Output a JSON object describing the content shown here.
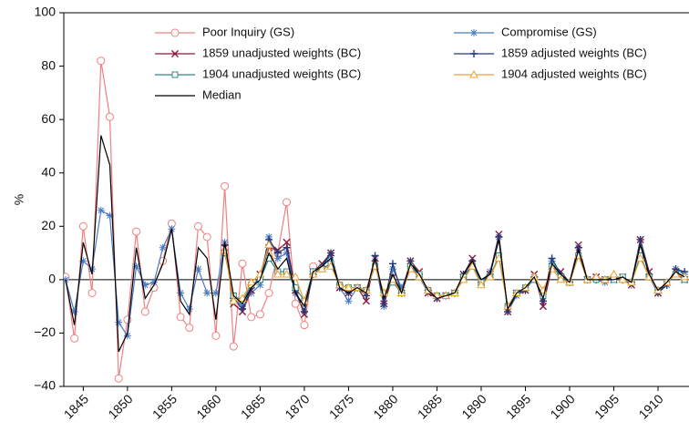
{
  "chart_data": {
    "type": "line",
    "ylabel": "%",
    "x": [
      1843,
      1844,
      1845,
      1846,
      1847,
      1848,
      1849,
      1850,
      1851,
      1852,
      1853,
      1854,
      1855,
      1856,
      1857,
      1858,
      1859,
      1860,
      1861,
      1862,
      1863,
      1864,
      1865,
      1866,
      1867,
      1868,
      1869,
      1870,
      1871,
      1872,
      1873,
      1874,
      1875,
      1876,
      1877,
      1878,
      1879,
      1880,
      1881,
      1882,
      1883,
      1884,
      1885,
      1886,
      1887,
      1888,
      1889,
      1890,
      1891,
      1892,
      1893,
      1894,
      1895,
      1896,
      1897,
      1898,
      1899,
      1900,
      1901,
      1902,
      1903,
      1904,
      1905,
      1906,
      1907,
      1908,
      1909,
      1910,
      1911,
      1912,
      1913
    ],
    "xlim": [
      1842.8,
      1913.5
    ],
    "xticks": [
      1845,
      1850,
      1855,
      1860,
      1865,
      1870,
      1875,
      1880,
      1885,
      1890,
      1895,
      1900,
      1905,
      1910
    ],
    "ylim": [
      -40,
      100
    ],
    "yticks": [
      {
        "value": -40,
        "label": "−40"
      },
      {
        "value": -20,
        "label": "−20"
      },
      0,
      20,
      40,
      60,
      80,
      100
    ],
    "series": [
      {
        "name": "Poor Inquiry (GS)",
        "color": "#f08080",
        "marker": "circle",
        "values": [
          1,
          -22,
          20,
          -5,
          82,
          61,
          -37,
          -15,
          18,
          -12,
          -3,
          7,
          21,
          -14,
          -18,
          20,
          16,
          -21,
          35,
          -25,
          6,
          -14,
          -13,
          -5,
          10,
          29,
          -9,
          -17,
          5,
          null,
          null,
          null,
          null,
          null,
          null,
          null,
          null,
          null,
          null,
          null,
          null,
          null,
          null,
          null,
          null,
          null,
          null,
          null,
          null,
          null,
          null,
          null,
          null,
          null,
          null,
          null,
          null,
          null,
          null,
          null,
          null,
          null,
          null,
          null,
          null,
          null,
          null,
          null,
          null,
          null,
          null
        ]
      },
      {
        "name": "Compromise (GS)",
        "color": "#4a7ac4",
        "marker": "star",
        "values": [
          0,
          -12,
          7,
          4,
          26,
          24,
          -16,
          -21,
          5,
          -2,
          -1,
          12,
          19,
          -5,
          -11,
          4,
          -5,
          -5,
          14,
          -7,
          -10,
          -5,
          -2,
          16,
          8,
          10,
          -5,
          -12,
          3,
          5,
          9,
          -3,
          -8,
          -3,
          -4,
          7,
          -10,
          4,
          -3,
          5,
          1,
          -5,
          -7,
          -6,
          -5,
          1,
          6,
          -1,
          3,
          16,
          -12,
          -6,
          -4,
          1,
          -8,
          7,
          1,
          -1,
          12,
          0,
          0,
          -1,
          1,
          0,
          -2,
          15,
          1,
          -5,
          -2,
          4,
          2
        ]
      },
      {
        "name": "1859 unadjusted weights (BC)",
        "color": "#8b1a3a",
        "marker": "x",
        "values": [
          null,
          null,
          null,
          null,
          null,
          null,
          null,
          null,
          null,
          null,
          null,
          null,
          null,
          null,
          null,
          null,
          null,
          null,
          12,
          -9,
          -12,
          -4,
          2,
          12,
          11,
          14,
          -4,
          -13,
          3,
          6,
          10,
          -3,
          -5,
          -3,
          -8,
          8,
          -9,
          1,
          -5,
          7,
          3,
          -5,
          -7,
          -6,
          -5,
          2,
          8,
          -1,
          2,
          17,
          -12,
          -5,
          -4,
          2,
          -10,
          5,
          3,
          -1,
          13,
          0,
          1,
          0,
          0,
          1,
          -2,
          15,
          3,
          -5,
          -1,
          3,
          0
        ]
      },
      {
        "name": "1859 adjusted weights (BC)",
        "color": "#1f3a7a",
        "marker": "plus",
        "values": [
          null,
          null,
          null,
          null,
          null,
          null,
          null,
          null,
          null,
          null,
          null,
          null,
          null,
          null,
          null,
          null,
          null,
          null,
          13,
          -7,
          -11,
          -3,
          1,
          15,
          10,
          12,
          -4,
          -12,
          2,
          5,
          10,
          -3,
          -5,
          -3,
          -6,
          9,
          -9,
          6,
          -5,
          7,
          2,
          -4,
          -7,
          -6,
          -5,
          2,
          7,
          -1,
          2,
          16,
          -12,
          -5,
          -4,
          1,
          -8,
          8,
          2,
          -1,
          12,
          0,
          0,
          0,
          1,
          0,
          -1,
          15,
          2,
          -5,
          -2,
          4,
          3
        ]
      },
      {
        "name": "1904 unadjusted weights (BC)",
        "color": "#2a8a8a",
        "marker": "square",
        "values": [
          null,
          null,
          null,
          null,
          null,
          null,
          null,
          null,
          null,
          null,
          null,
          null,
          null,
          null,
          null,
          null,
          null,
          null,
          10,
          -6,
          -8,
          -2,
          0,
          8,
          3,
          3,
          -3,
          -8,
          3,
          4,
          6,
          -2,
          -3,
          -3,
          -4,
          5,
          -5,
          -1,
          -5,
          5,
          2,
          -4,
          -6,
          -6,
          -5,
          1,
          5,
          -1,
          1,
          9,
          -10,
          -5,
          -3,
          0,
          -6,
          5,
          1,
          -1,
          9,
          0,
          0,
          0,
          0,
          1,
          -1,
          9,
          1,
          -4,
          -1,
          2,
          0
        ]
      },
      {
        "name": "1904 adjusted weights (BC)",
        "color": "#f0a030",
        "marker": "triangle",
        "values": [
          null,
          null,
          null,
          null,
          null,
          null,
          null,
          null,
          null,
          null,
          null,
          null,
          null,
          null,
          null,
          null,
          null,
          null,
          11,
          -8,
          -7,
          -1,
          2,
          13,
          2,
          2,
          1,
          -8,
          2,
          4,
          5,
          -2,
          -3,
          -3,
          -4,
          5,
          -5,
          0,
          -5,
          4,
          1,
          -4,
          -6,
          -6,
          -5,
          0,
          5,
          -2,
          1,
          8,
          -10,
          -5,
          -3,
          1,
          -4,
          4,
          0,
          -1,
          9,
          0,
          1,
          0,
          2,
          0,
          -1,
          8,
          1,
          -4,
          -1,
          2,
          1
        ]
      },
      {
        "name": "Median",
        "color": "#000000",
        "marker": "none",
        "values": [
          0,
          -17,
          14,
          2,
          54,
          43,
          -27,
          -20,
          12,
          -7,
          -2,
          6,
          19,
          -8,
          -13,
          12,
          8,
          -15,
          14,
          -6,
          -9,
          -3,
          0,
          10,
          4,
          8,
          -5,
          -10,
          3,
          5,
          8,
          -3,
          -5,
          -3,
          -5,
          8,
          -7,
          2,
          -5,
          6,
          2,
          -4,
          -7,
          -6,
          -5,
          2,
          7,
          0,
          2,
          15,
          -11,
          -5,
          -3,
          1,
          -7,
          6,
          2,
          -1,
          11,
          0,
          0,
          0,
          0,
          1,
          -1,
          13,
          2,
          -4,
          -1,
          3,
          1
        ]
      }
    ],
    "legend": "top",
    "zero_line": true
  }
}
